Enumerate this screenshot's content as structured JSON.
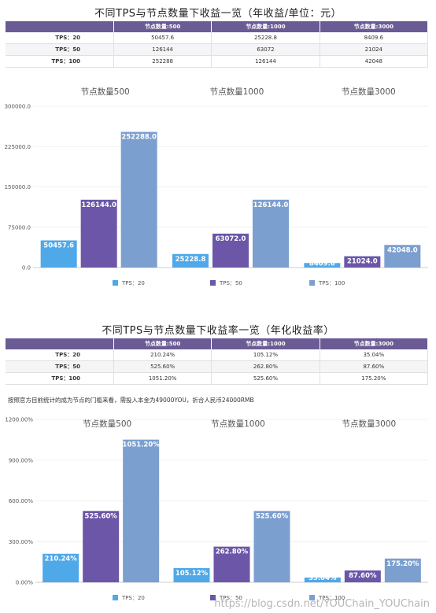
{
  "revenue": {
    "title": "不同TPS与节点数量下收益一览（年收益/单位：元）",
    "table": {
      "headers": [
        "",
        "节点数量:500",
        "节点数量:1000",
        "节点数量:3000"
      ],
      "rows": [
        {
          "label": "TPS：20",
          "cells": [
            "50457.6",
            "25228.8",
            "8409.6"
          ]
        },
        {
          "label": "TPS：50",
          "cells": [
            "126144",
            "63072",
            "21024"
          ]
        },
        {
          "label": "TPS：100",
          "cells": [
            "252288",
            "126144",
            "42048"
          ]
        }
      ]
    }
  },
  "rate": {
    "title": "不同TPS与节点数量下收益率一览（年化收益率）",
    "table": {
      "headers": [
        "",
        "节点数量:500",
        "节点数量:1000",
        "节点数量:3000"
      ],
      "rows": [
        {
          "label": "TPS：20",
          "cells": [
            "210.24%",
            "105.12%",
            "35.04%"
          ]
        },
        {
          "label": "TPS：50",
          "cells": [
            "525.60%",
            "262.80%",
            "87.60%"
          ]
        },
        {
          "label": "TPS：100",
          "cells": [
            "1051.20%",
            "525.60%",
            "175.20%"
          ]
        }
      ]
    }
  },
  "note": "按照官方目前统计的成为节点的门槛来看，需投入本金为49000YOU，折合人民币24000RMB",
  "watermark": "https://blog.csdn.net/YOUChain_YOUChain",
  "colors": {
    "TPS：20": "#4fa8e8",
    "TPS：50": "#6b56a8",
    "TPS：100": "#7b9fcf",
    "header": "#6b5b95"
  },
  "chart_data": [
    {
      "type": "bar",
      "categories": [
        "节点数量500",
        "节点数量1000",
        "节点数量3000"
      ],
      "series": [
        {
          "name": "TPS：20",
          "values": [
            50457.6,
            25228.8,
            8409.6
          ]
        },
        {
          "name": "TPS：50",
          "values": [
            126144.0,
            63072.0,
            21024.0
          ]
        },
        {
          "name": "TPS：100",
          "values": [
            252288.0,
            126144.0,
            42048.0
          ]
        }
      ],
      "yticks": [
        "0.0",
        "75000.0",
        "150000.0",
        "225000.0",
        "300000.0"
      ],
      "ylim": [
        0,
        300000
      ],
      "labels": [
        [
          "50457.6",
          "25228.8",
          "8409.6"
        ],
        [
          "126144.0",
          "63072.0",
          "21024.0"
        ],
        [
          "252288.0",
          "126144.0",
          "42048.0"
        ]
      ],
      "legend": "bottom"
    },
    {
      "type": "bar",
      "categories": [
        "节点数量500",
        "节点数量1000",
        "节点数量3000"
      ],
      "series": [
        {
          "name": "TPS：20",
          "values": [
            210.24,
            105.12,
            35.04
          ]
        },
        {
          "name": "TPS：50",
          "values": [
            525.6,
            262.8,
            87.6
          ]
        },
        {
          "name": "TPS：100",
          "values": [
            1051.2,
            525.6,
            175.2
          ]
        }
      ],
      "yticks": [
        "0.00%",
        "300.00%",
        "600.00%",
        "900.00%",
        "1200.00%"
      ],
      "ylim": [
        0,
        1200
      ],
      "labels": [
        [
          "210.24%",
          "105.12%",
          "35.04%"
        ],
        [
          "525.60%",
          "262.80%",
          "87.60%"
        ],
        [
          "1051.20%",
          "525.60%",
          "175.20%"
        ]
      ],
      "legend": "bottom"
    }
  ]
}
